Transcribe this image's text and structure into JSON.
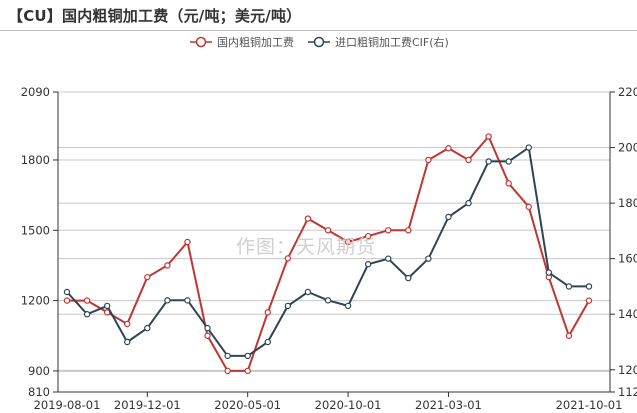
{
  "title": "【CU】国内粗铜加工费（元/吨；美元/吨）",
  "watermark": "作图：天风期货",
  "legend": [
    {
      "label": "国内粗铜加工费",
      "color": "#c23531"
    },
    {
      "label": "进口粗铜加工费CIF(右)",
      "color": "#2f4554"
    }
  ],
  "colors": {
    "series_domestic": "#c23531",
    "series_import": "#2f4554",
    "grid": "#c8c8c8",
    "axis": "#333333"
  },
  "chart_data": {
    "type": "line",
    "title": "【CU】国内粗铜加工费（元/吨；美元/吨）",
    "xlabel": "",
    "ylabel": "",
    "x": [
      "2019-08-01",
      "2019-09-01",
      "2019-10-01",
      "2019-11-01",
      "2019-12-01",
      "2020-01-01",
      "2020-02-01",
      "2020-03-01",
      "2020-04-01",
      "2020-05-01",
      "2020-06-01",
      "2020-07-01",
      "2020-08-01",
      "2020-09-01",
      "2020-10-01",
      "2020-11-01",
      "2020-12-01",
      "2021-01-01",
      "2021-02-01",
      "2021-03-01",
      "2021-04-01",
      "2021-05-01",
      "2021-06-01",
      "2021-07-01",
      "2021-08-01",
      "2021-09-01",
      "2021-10-01"
    ],
    "x_tick_labels": [
      "2019-08-01",
      "2019-12-01",
      "2020-05-01",
      "2020-10-01",
      "2021-03-01",
      "2021-10-01"
    ],
    "y_left": {
      "min": 810,
      "max": 2090,
      "ticks": [
        810,
        900,
        1200,
        1500,
        1800,
        2090
      ]
    },
    "y_right": {
      "min": 112,
      "max": 220,
      "ticks": [
        112,
        120,
        140,
        160,
        180,
        200,
        220
      ]
    },
    "grid": true,
    "legend_position": "top-right",
    "series": [
      {
        "name": "国内粗铜加工费",
        "axis": "left",
        "values": [
          1200,
          1200,
          1150,
          1100,
          1300,
          1350,
          1450,
          1050,
          900,
          900,
          1150,
          1380,
          1550,
          1500,
          1450,
          1475,
          1500,
          1500,
          1800,
          1850,
          1800,
          1900,
          1700,
          1600,
          1300,
          1050,
          1200
        ]
      },
      {
        "name": "进口粗铜加工费CIF(右)",
        "axis": "right",
        "values": [
          148,
          140,
          143,
          130,
          135,
          145,
          145,
          135,
          125,
          125,
          130,
          143,
          148,
          145,
          143,
          158,
          160,
          153,
          160,
          175,
          180,
          195,
          195,
          200,
          155,
          150,
          150
        ]
      }
    ]
  }
}
